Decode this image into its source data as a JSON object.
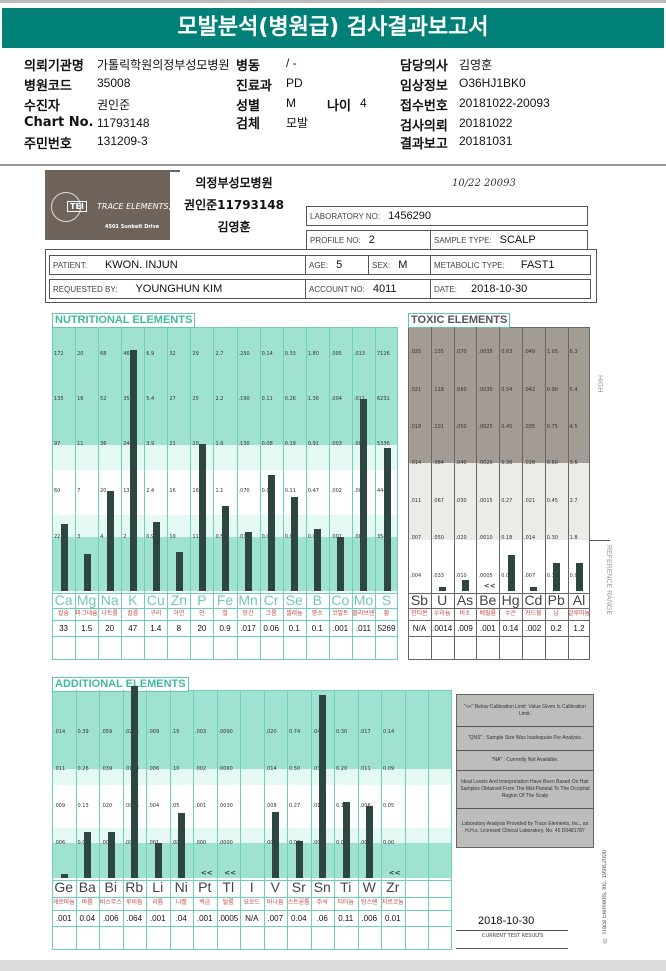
{
  "title": "모발분석(병원급) 검사결과보고서",
  "header": {
    "institution_label": "의뢰기관명",
    "institution": "가톨릭학원의정부성모병원",
    "ward_label": "병동",
    "ward": "/ -",
    "doctor_label": "담당의사",
    "doctor": "김영훈",
    "hospital_code_label": "병원코드",
    "hospital_code": "35008",
    "dept_label": "진료과",
    "dept": "PD",
    "clinical_label": "임상정보",
    "clinical": "O36HJ1BK0",
    "patient_label": "수진자",
    "patient": "권인준",
    "sex_label": "성별",
    "sex": "M",
    "age_label": "나이",
    "age": "4",
    "receipt_label": "접수번호",
    "receipt": "20181022-20093",
    "chart_label": "Chart No.",
    "chart": "11793148",
    "specimen_label": "검체",
    "specimen": "모발",
    "request_label": "검사의뢰",
    "request": "20181022",
    "id_label": "주민번호",
    "id": "131209-3",
    "report_label": "결과보고",
    "report": "20181031"
  },
  "report": {
    "logo_text": "TRACE ELEMENTS,",
    "logo_abbr": "TEI",
    "logo_address": "4501 Sunbelt Drive",
    "sticker": [
      "의정부성모병원",
      "권인준11793148",
      "김영훈"
    ],
    "handwriting": "10/22   20093",
    "lab_no_label": "LABORATORY NO:",
    "lab_no": "1456290",
    "profile_label": "PROFILE NO:",
    "profile": "2",
    "sample_label": "SAMPLE TYPE:",
    "sample": "SCALP",
    "patient_label": "PATIENT:",
    "patient": "KWON. INJUN",
    "age_label": "AGE:",
    "age": "5",
    "sex_label": "SEX:",
    "sex": "M",
    "metabolic_label": "METABOLIC TYPE:",
    "metabolic": "FAST1",
    "requested_label": "REQUESTED BY:",
    "requested": "YOUNGHUN KIM",
    "account_label": "ACCOUNT NO:",
    "account": "4011",
    "date_label": "DATE:",
    "date": "2018-10-30",
    "high_label": "HIGH",
    "reference_label": "REFERENCE RANGE",
    "notes": [
      "\"<<\" Below Calibration Limit: Value Given Is Calibration Limit.",
      "\"QNS\" : Sample Size Was Inadequate For Analysis.",
      "\"NA\" : Currently Not Available.",
      "Ideal Levels And Interpretation Have Been Based On Hair Samples Obtained From The Mid-Parietal To The Occipital Region Of The Scalp",
      "Laboratory Analysis Provided by Trace Elements, Inc., an H.H.s. Licensed Clinical Laboratory, No. 45 D0481787"
    ],
    "current_date": "2018-10-30",
    "current_label": "CURRENT TEST RESULTS",
    "copyright": "© Trace Elements, Inc. 1998,2000"
  },
  "colors": {
    "title_bar": "#008077",
    "teal_zone": "#9fe2d2",
    "gray_zone": "#a39c94",
    "bar": "#2e4642"
  },
  "chart_data": [
    {
      "type": "bar",
      "title": "NUTRITIONAL ELEMENTS",
      "categories": [
        "Ca",
        "Mg",
        "Na",
        "K",
        "Cu",
        "Zn",
        "P",
        "Fe",
        "Mn",
        "Cr",
        "Se",
        "B",
        "Co",
        "Mo",
        "S"
      ],
      "korean_names": [
        "칼슘",
        "마그네슘",
        "나트륨",
        "칼륨",
        "구리",
        "아연",
        "인",
        "철",
        "망간",
        "크롬",
        "셀레늄",
        "붕소",
        "코발트",
        "몰리브덴",
        "황"
      ],
      "values": [
        "33",
        "1.5",
        "20",
        "47",
        "1.4",
        "8",
        "20",
        "0.9",
        ".017",
        "0.06",
        "0.1",
        "0.1",
        ".001",
        ".011",
        "5269"
      ],
      "scale_ticks": [
        [
          "172",
          "135",
          "97",
          "60",
          "22"
        ],
        [
          "20",
          "16",
          "11",
          "7",
          "3"
        ],
        [
          "68",
          "52",
          "36",
          "20",
          "4"
        ],
        [
          "46",
          "35",
          "24",
          "13",
          "2"
        ],
        [
          "6.9",
          "5.4",
          "3.9",
          "2.4",
          "0.9"
        ],
        [
          "32",
          "27",
          "21",
          "16",
          "10"
        ],
        [
          "29",
          "25",
          "20",
          "16",
          "11"
        ],
        [
          "2.7",
          "2.2",
          "1.6",
          "1.1",
          "0.5"
        ],
        [
          ".250",
          ".190",
          ".130",
          ".070",
          ".010"
        ],
        [
          "0.14",
          "0.11",
          "0.08",
          "0.05",
          "0.02"
        ],
        [
          "0.33",
          "0.26",
          "0.19",
          "0.11",
          "0.03"
        ],
        [
          "1.80",
          "1.36",
          "0.91",
          "0.47",
          "0.02"
        ],
        [
          ".005",
          ".004",
          ".003",
          ".002",
          ".001"
        ],
        [
          ".013",
          ".011",
          ".008",
          ".005",
          ".002"
        ],
        [
          "7126",
          "6231",
          "5336",
          "4441",
          "3546"
        ]
      ],
      "below_limit": []
    },
    {
      "type": "bar",
      "title": "TOXIC ELEMENTS",
      "categories": [
        "Sb",
        "U",
        "As",
        "Be",
        "Hg",
        "Cd",
        "Pb",
        "Al"
      ],
      "korean_names": [
        "안티몬",
        "우라늄",
        "비소",
        "베릴륨",
        "수은",
        "카드뮴",
        "납",
        "알루미늄"
      ],
      "values": [
        "N/A",
        ".0014",
        ".009",
        ".001",
        "0.14",
        ".002",
        "0.2",
        "1.2"
      ],
      "scale_ticks": [
        [
          ".025",
          ".021",
          ".018",
          ".014",
          ".011",
          ".007",
          ".004"
        ],
        [
          ".135",
          ".118",
          ".101",
          ".084",
          ".067",
          ".050",
          ".033"
        ],
        [
          ".070",
          ".060",
          ".050",
          ".040",
          ".030",
          ".020",
          ".010"
        ],
        [
          ".0035",
          ".0030",
          ".0025",
          ".0020",
          ".0015",
          ".0010",
          ".0005"
        ],
        [
          "0.63",
          "0.54",
          "0.45",
          "0.36",
          "0.27",
          "0.18",
          "0.09"
        ],
        [
          ".049",
          ".042",
          ".035",
          ".028",
          ".021",
          ".014",
          ".007"
        ],
        [
          "1.05",
          "0.90",
          "0.75",
          "0.60",
          "0.45",
          "0.30",
          "0.15"
        ],
        [
          "6.3",
          "5.4",
          "4.5",
          "3.6",
          "2.7",
          "1.8",
          "0.9"
        ]
      ],
      "below_limit": [
        "Be"
      ]
    },
    {
      "type": "bar",
      "title": "ADDITIONAL ELEMENTS",
      "categories": [
        "Ge",
        "Ba",
        "Bi",
        "Rb",
        "Li",
        "Ni",
        "Pt",
        "Tl",
        "I",
        "V",
        "Sr",
        "Sn",
        "Ti",
        "W",
        "Zr"
      ],
      "korean_names": [
        "게르마늄",
        "바륨",
        "비스무스",
        "루비듐",
        "리튬",
        "니켈",
        "백금",
        "탈륨",
        "요오드",
        "바나듐",
        "스트론튬",
        "주석",
        "티타늄",
        "텅스텐",
        "지르코늄"
      ],
      "values": [
        ".001",
        "0.04",
        ".006",
        ".064",
        ".001",
        ".04",
        ".001",
        ".0005",
        "N/A",
        ".007",
        "0.04",
        ".06",
        "0.11",
        ".006",
        "0.01"
      ],
      "scale_ticks": [
        [
          ".014",
          ".011",
          ".009",
          ".006"
        ],
        [
          "0.39",
          "0.26",
          "0.13",
          "0.00"
        ],
        [
          ".059",
          ".039",
          ".020",
          ".000"
        ],
        [
          ".0285",
          ".0190",
          ".0095",
          ".000"
        ],
        [
          ".009",
          ".006",
          ".004",
          ".001"
        ],
        [
          ".15",
          ".10",
          ".05",
          ".00"
        ],
        [
          ".003",
          ".002",
          ".001",
          ".000"
        ],
        [
          ".0090",
          ".0060",
          ".0030",
          ".0000"
        ],
        [],
        [
          ".020",
          ".014",
          ".008",
          ".002"
        ],
        [
          "0.74",
          "0.50",
          "0.27",
          "0.03"
        ],
        [
          ".045",
          ".030",
          ".015",
          ".000"
        ],
        [
          "0.30",
          "0.20",
          "0.10",
          "0.00"
        ],
        [
          ".017",
          ".011",
          ".006",
          ".000"
        ],
        [
          "0.14",
          "0.09",
          "0.05",
          "0.00"
        ]
      ],
      "below_limit": [
        "Pt",
        "Tl",
        "Zr"
      ]
    }
  ]
}
